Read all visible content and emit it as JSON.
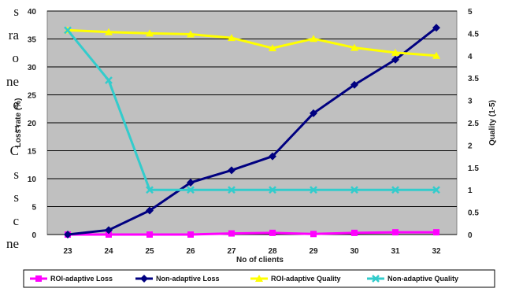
{
  "left_margin_text": [
    "s",
    "ra",
    "o",
    "ne",
    "",
    "e",
    "r",
    "C",
    "s",
    "s",
    "c",
    "ne"
  ],
  "colors": {
    "plot_bg": "#c0c0c0",
    "grid": "#000000",
    "roi_loss": "#ff00ff",
    "non_adaptive_loss": "#000080",
    "roi_quality": "#ffff00",
    "non_adaptive_quality": "#33cccc"
  },
  "chart_data": {
    "type": "line",
    "title": "",
    "xlabel": "No of clients",
    "ylabel": "Loss rate (%)",
    "y2label": "Quality (1-5)",
    "x": [
      23,
      24,
      25,
      26,
      27,
      28,
      29,
      30,
      31,
      32
    ],
    "ylim": [
      0,
      40
    ],
    "yticks": [
      0,
      5,
      10,
      15,
      20,
      25,
      30,
      35,
      40
    ],
    "y2lim": [
      0,
      5
    ],
    "y2ticks": [
      "0",
      "0.5",
      "1",
      "1.5",
      "2",
      "2.5",
      "3",
      "3.5",
      "4",
      "4.5",
      "5"
    ],
    "grid": true,
    "legend_position": "bottom",
    "series": [
      {
        "name": "ROI-adaptive Loss",
        "axis": "left",
        "marker": "square",
        "color": "#ff00ff",
        "values": [
          0,
          0,
          0,
          0,
          0.2,
          0.3,
          0.1,
          0.3,
          0.4,
          0.4
        ]
      },
      {
        "name": "Non-adaptive Loss",
        "axis": "left",
        "marker": "diamond",
        "color": "#000080",
        "values": [
          0,
          0.8,
          4.3,
          9.3,
          11.5,
          14,
          21.7,
          26.8,
          31.3,
          37
        ]
      },
      {
        "name": "ROI-adaptive Quality",
        "axis": "right",
        "marker": "triangle",
        "color": "#ffff00",
        "values": [
          4.57,
          4.53,
          4.5,
          4.48,
          4.4,
          4.17,
          4.38,
          4.18,
          4.07,
          4.0
        ]
      },
      {
        "name": "Non-adaptive Quality",
        "axis": "right",
        "marker": "x",
        "color": "#33cccc",
        "values": [
          4.57,
          3.45,
          1.0,
          1.0,
          1.0,
          1.0,
          1.0,
          1.0,
          1.0,
          1.0
        ]
      }
    ]
  }
}
